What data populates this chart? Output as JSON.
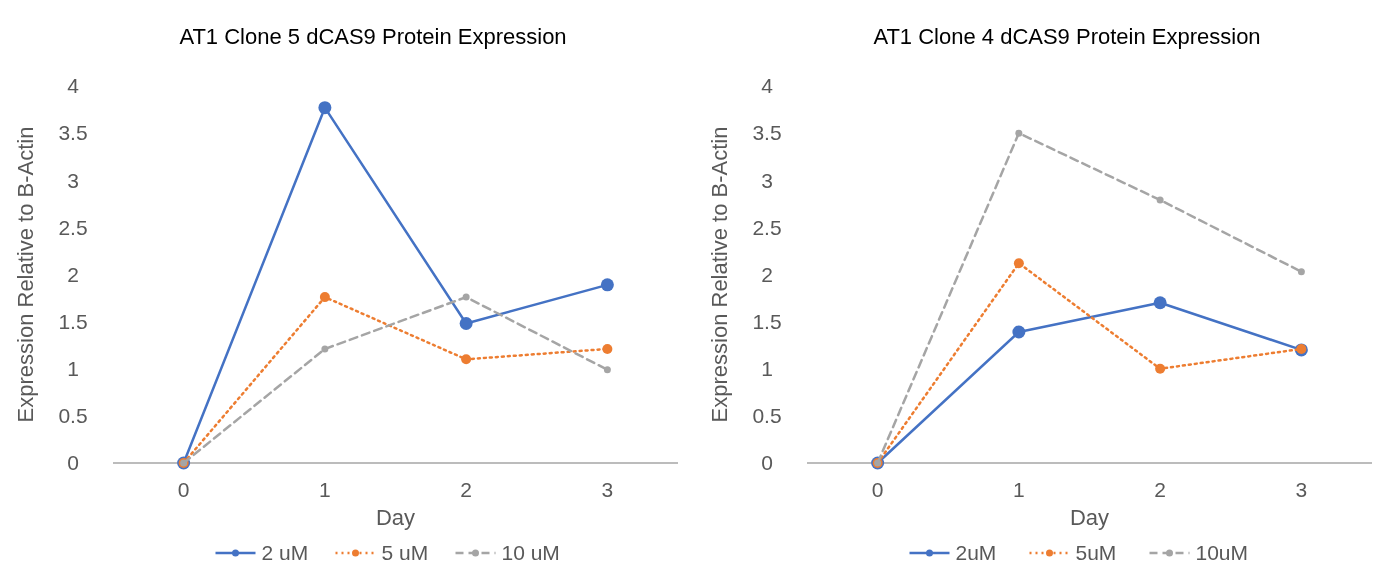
{
  "chart_data": [
    {
      "type": "line",
      "title": "AT1 Clone 5 dCAS9 Protein Expression",
      "xlabel": "Day",
      "ylabel": "Expression Relative to B-Actin",
      "categories": [
        "0",
        "1",
        "2",
        "3"
      ],
      "ylim": [
        0,
        4
      ],
      "yticks": [
        0,
        0.5,
        1,
        1.5,
        2,
        2.5,
        3,
        3.5,
        4
      ],
      "grid": false,
      "legend": "bottom",
      "marker": "circle",
      "series": [
        {
          "name": "2 uM",
          "color": "#4472c4",
          "line_style": "solid",
          "values": [
            0,
            3.77,
            1.48,
            1.89
          ]
        },
        {
          "name": "5 uM",
          "color": "#ed7d31",
          "line_style": "dotted",
          "values": [
            0,
            1.76,
            1.1,
            1.21
          ]
        },
        {
          "name": "10 uM",
          "color": "#a5a5a5",
          "line_style": "dashed",
          "values": [
            0,
            1.21,
            1.76,
            0.99
          ]
        }
      ]
    },
    {
      "type": "line",
      "title": "AT1 Clone 4 dCAS9 Protein Expression",
      "xlabel": "Day",
      "ylabel": "Expression Relative to B-Actin",
      "categories": [
        "0",
        "1",
        "2",
        "3"
      ],
      "ylim": [
        0,
        4
      ],
      "yticks": [
        0,
        0.5,
        1,
        1.5,
        2,
        2.5,
        3,
        3.5,
        4
      ],
      "grid": false,
      "legend": "bottom",
      "marker": "circle",
      "series": [
        {
          "name": "2uM",
          "color": "#4472c4",
          "line_style": "solid",
          "values": [
            0,
            1.39,
            1.7,
            1.2
          ]
        },
        {
          "name": "5uM",
          "color": "#ed7d31",
          "line_style": "dotted",
          "values": [
            0,
            2.12,
            1.0,
            1.21
          ]
        },
        {
          "name": "10uM",
          "color": "#a5a5a5",
          "line_style": "dashed",
          "values": [
            0,
            3.5,
            2.79,
            2.03
          ]
        }
      ]
    }
  ]
}
